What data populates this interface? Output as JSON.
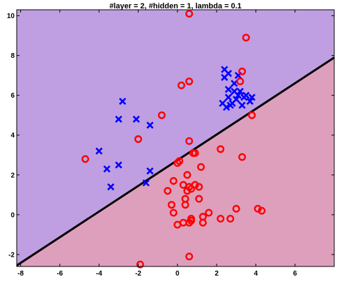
{
  "chart_data": {
    "type": "scatter",
    "title": "#layer = 2, #hidden = 1, lambda = 0.1",
    "xlabel": "",
    "ylabel": "",
    "xlim": [
      -8.2,
      8.0
    ],
    "ylim": [
      -2.6,
      10.3
    ],
    "x_ticks": [
      -8,
      -6,
      -4,
      -2,
      0,
      2,
      4,
      6
    ],
    "y_ticks": [
      -2,
      0,
      2,
      4,
      6,
      8,
      10
    ],
    "grid": false,
    "legend": "none",
    "colors": {
      "region_upper": "#bf9fe1",
      "region_lower": "#de9fbd",
      "boundary": "#000000",
      "class_x": "#0000ff",
      "class_o": "#ff0000"
    },
    "decision_boundary": {
      "x": [
        -8.2,
        8.0
      ],
      "y": [
        -2.55,
        7.9
      ]
    },
    "series": [
      {
        "marker": "x",
        "points": [
          [
            -2.8,
            5.7
          ],
          [
            -3.0,
            4.8
          ],
          [
            -2.1,
            4.8
          ],
          [
            -1.4,
            4.5
          ],
          [
            -4.0,
            3.2
          ],
          [
            -3.6,
            2.3
          ],
          [
            -3.0,
            2.5
          ],
          [
            -3.4,
            1.4
          ],
          [
            -1.4,
            2.2
          ],
          [
            -1.6,
            1.6
          ],
          [
            2.4,
            7.3
          ],
          [
            2.6,
            7.1
          ],
          [
            2.4,
            6.9
          ],
          [
            3.1,
            7.0
          ],
          [
            2.9,
            6.6
          ],
          [
            2.6,
            6.3
          ],
          [
            2.9,
            6.2
          ],
          [
            3.2,
            6.2
          ],
          [
            3.5,
            6.0
          ],
          [
            3.8,
            5.9
          ],
          [
            2.3,
            5.6
          ],
          [
            2.5,
            5.4
          ],
          [
            2.8,
            5.6
          ],
          [
            3.0,
            5.8
          ],
          [
            3.3,
            5.5
          ],
          [
            3.7,
            5.7
          ],
          [
            2.6,
            5.9
          ],
          [
            3.1,
            6.0
          ],
          [
            2.7,
            5.5
          ],
          [
            3.4,
            5.9
          ]
        ]
      },
      {
        "marker": "o",
        "points": [
          [
            0.6,
            10.1
          ],
          [
            3.5,
            8.9
          ],
          [
            3.3,
            7.2
          ],
          [
            0.6,
            6.7
          ],
          [
            0.2,
            6.5
          ],
          [
            3.2,
            6.7
          ],
          [
            -0.8,
            5.0
          ],
          [
            3.8,
            5.0
          ],
          [
            -2.0,
            3.8
          ],
          [
            0.6,
            3.7
          ],
          [
            2.2,
            3.3
          ],
          [
            0.8,
            3.1
          ],
          [
            0.9,
            3.1
          ],
          [
            -4.7,
            2.8
          ],
          [
            0.1,
            2.7
          ],
          [
            0.0,
            2.6
          ],
          [
            3.3,
            2.9
          ],
          [
            1.2,
            2.4
          ],
          [
            0.5,
            2.0
          ],
          [
            -0.2,
            1.7
          ],
          [
            0.3,
            1.5
          ],
          [
            0.6,
            1.4
          ],
          [
            0.7,
            1.3
          ],
          [
            0.9,
            1.5
          ],
          [
            1.1,
            1.4
          ],
          [
            -0.5,
            1.2
          ],
          [
            0.5,
            1.2
          ],
          [
            0.4,
            0.8
          ],
          [
            1.1,
            0.8
          ],
          [
            0.4,
            0.5
          ],
          [
            -0.3,
            0.5
          ],
          [
            -0.2,
            0.1
          ],
          [
            1.6,
            0.1
          ],
          [
            3.0,
            0.3
          ],
          [
            4.1,
            0.3
          ],
          [
            4.3,
            0.2
          ],
          [
            1.3,
            -0.1
          ],
          [
            2.2,
            -0.2
          ],
          [
            2.7,
            -0.2
          ],
          [
            0.7,
            -0.2
          ],
          [
            0.3,
            -0.4
          ],
          [
            0.6,
            -0.4
          ],
          [
            0.0,
            -0.5
          ],
          [
            1.3,
            -0.4
          ],
          [
            0.7,
            -0.3
          ],
          [
            0.6,
            -2.1
          ],
          [
            -1.9,
            -2.5
          ]
        ]
      }
    ]
  }
}
